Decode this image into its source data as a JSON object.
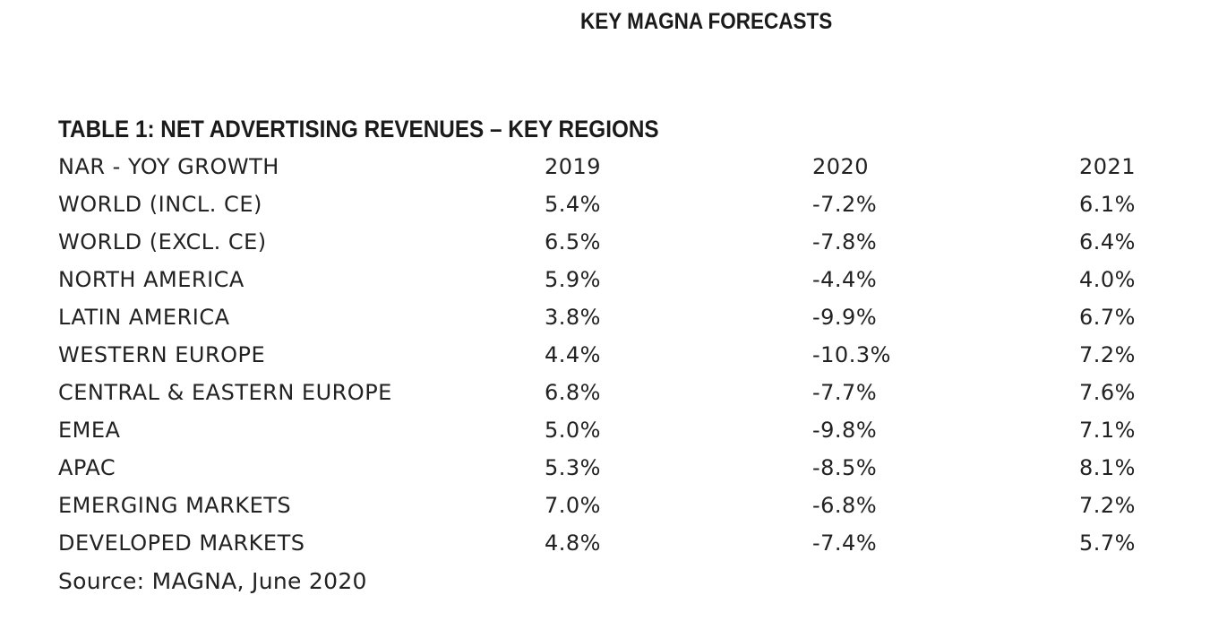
{
  "page_title": "KEY MAGNA FORECASTS",
  "table_title": "TABLE 1: NET ADVERTISING REVENUES – KEY REGIONS",
  "header": {
    "label": "NAR - YOY GROWTH",
    "years": [
      "2019",
      "2020",
      "2021"
    ]
  },
  "rows": [
    {
      "label": "WORLD (INCL. CE)",
      "values": [
        "5.4%",
        "-7.2%",
        "6.1%"
      ]
    },
    {
      "label": "WORLD (EXCL. CE)",
      "values": [
        "6.5%",
        "-7.8%",
        "6.4%"
      ]
    },
    {
      "label": "NORTH AMERICA",
      "values": [
        "5.9%",
        "-4.4%",
        "4.0%"
      ]
    },
    {
      "label": "LATIN AMERICA",
      "values": [
        "3.8%",
        "-9.9%",
        "6.7%"
      ]
    },
    {
      "label": "WESTERN EUROPE",
      "values": [
        "4.4%",
        "-10.3%",
        "7.2%"
      ]
    },
    {
      "label": "CENTRAL & EASTERN EUROPE",
      "values": [
        "6.8%",
        "-7.7%",
        "7.6%"
      ]
    },
    {
      "label": "EMEA",
      "values": [
        "5.0%",
        "-9.8%",
        "7.1%"
      ]
    },
    {
      "label": "APAC",
      "values": [
        "5.3%",
        "-8.5%",
        "8.1%"
      ]
    },
    {
      "label": "EMERGING MARKETS",
      "values": [
        "7.0%",
        "-6.8%",
        "7.2%"
      ]
    },
    {
      "label": "DEVELOPED MARKETS",
      "values": [
        "4.8%",
        "-7.4%",
        "5.7%"
      ]
    }
  ],
  "source": "Source: MAGNA, June 2020"
}
